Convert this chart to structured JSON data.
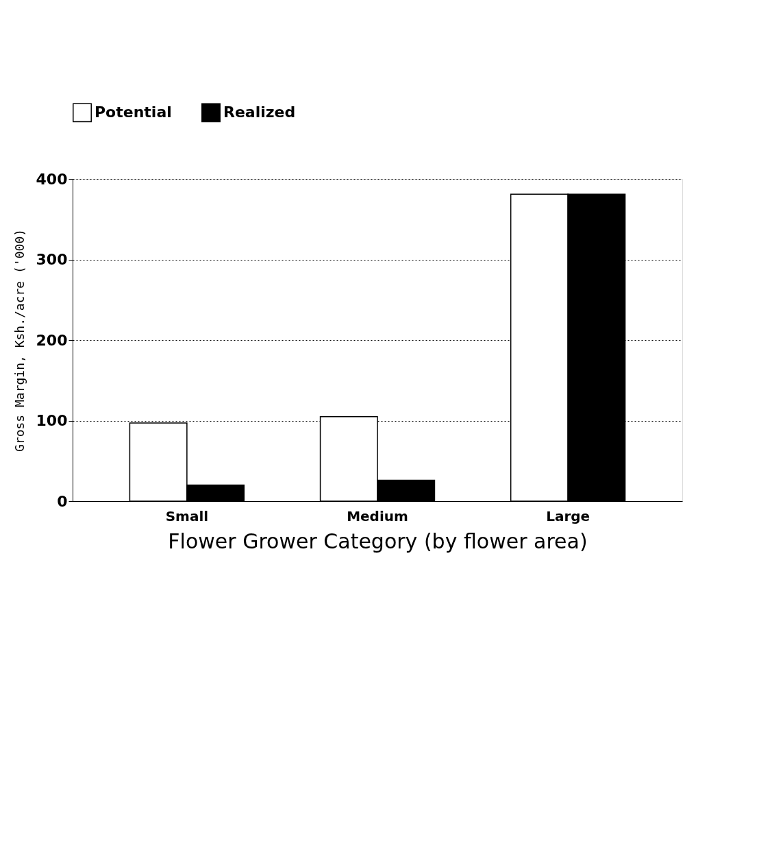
{
  "chart_data": {
    "type": "bar",
    "xlabel": "Flower Grower Category (by flower area)",
    "ylabel": "Gross Margin, Ksh./acre ('000)",
    "categories": [
      "Small",
      "Medium",
      "Large"
    ],
    "series": [
      {
        "name": "Potential",
        "color": "#ffffff",
        "values": [
          97,
          105,
          381
        ]
      },
      {
        "name": "Realized",
        "color": "#000000",
        "values": [
          20,
          26,
          381
        ]
      }
    ],
    "ylim": [
      0,
      400
    ],
    "yticks": [
      0,
      100,
      200,
      300,
      400
    ],
    "grid": "y",
    "legend": "top"
  }
}
